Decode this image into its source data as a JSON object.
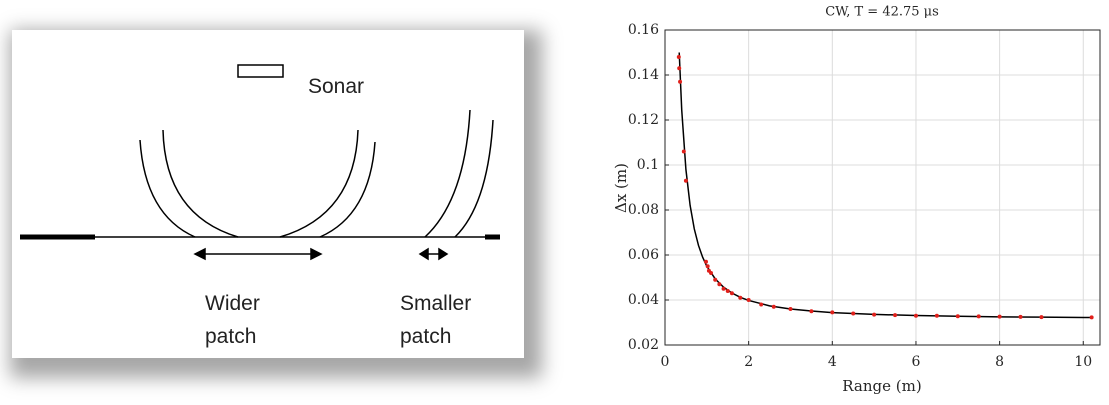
{
  "diagram": {
    "sonar": "Sonar",
    "wider_patch": [
      "Wider",
      "patch"
    ],
    "smaller_patch": [
      "Smaller",
      "patch"
    ]
  },
  "chart_data": {
    "type": "scatter",
    "title": "CW, T = 42.75 μs",
    "x_label": "Range (m)",
    "y_label": "Δx (m)",
    "xlim": [
      0,
      10.4
    ],
    "ylim": [
      0.02,
      0.16
    ],
    "xticks": [
      0,
      2,
      4,
      6,
      8,
      10
    ],
    "yticks": [
      0.02,
      0.04,
      0.06,
      0.08,
      0.1,
      0.12,
      0.14,
      0.16
    ],
    "grid": true,
    "series": [
      {
        "style": "line",
        "color": "#000000",
        "x": [
          0.34,
          0.4,
          0.5,
          0.6,
          0.7,
          0.8,
          0.9,
          1,
          1.2,
          1.4,
          1.6,
          1.8,
          2,
          2.5,
          3,
          3.5,
          4,
          5,
          6,
          7,
          8,
          9,
          10,
          10.2
        ],
        "values": [
          0.15,
          0.1244,
          0.098,
          0.0821,
          0.0716,
          0.0643,
          0.059,
          0.055,
          0.0494,
          0.0457,
          0.0431,
          0.0412,
          0.0398,
          0.0374,
          0.036,
          0.0351,
          0.0344,
          0.0336,
          0.0331,
          0.0328,
          0.0325,
          0.0324,
          0.0322,
          0.0322
        ]
      },
      {
        "style": "points",
        "color": "#e0201b",
        "x": [
          0.33,
          0.34,
          0.36,
          0.45,
          0.5,
          0.98,
          1.02,
          1.05,
          1.1,
          1.2,
          1.3,
          1.4,
          1.5,
          1.6,
          1.8,
          2,
          2.3,
          2.6,
          3,
          3.5,
          4,
          4.5,
          5,
          5.5,
          6,
          6.5,
          7,
          7.5,
          8,
          8.5,
          9,
          10.2
        ],
        "values": [
          0.148,
          0.143,
          0.137,
          0.106,
          0.093,
          0.057,
          0.055,
          0.053,
          0.052,
          0.049,
          0.047,
          0.045,
          0.044,
          0.043,
          0.041,
          0.04,
          0.038,
          0.037,
          0.036,
          0.035,
          0.0345,
          0.034,
          0.0335,
          0.0333,
          0.033,
          0.033,
          0.0328,
          0.0327,
          0.0326,
          0.0325,
          0.0324,
          0.0323
        ]
      }
    ]
  }
}
